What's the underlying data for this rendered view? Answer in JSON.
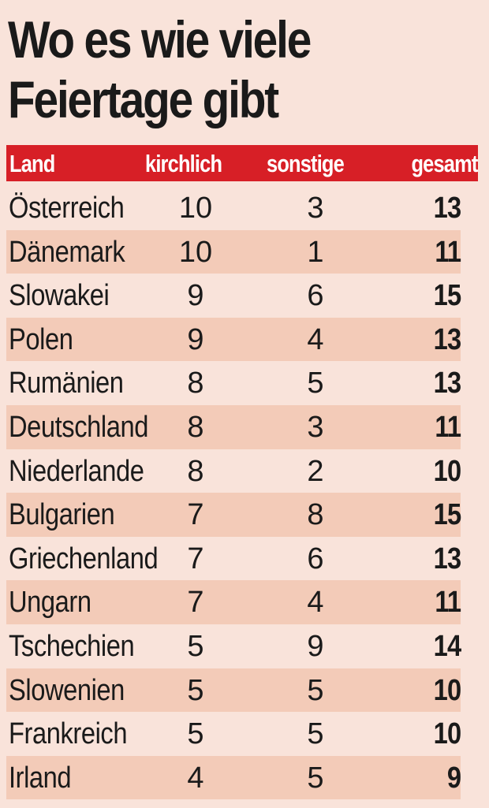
{
  "chart_data": {
    "type": "table",
    "title": "Wo es wie viele Feiertage gibt",
    "title_lines": [
      "Wo es wie viele",
      "Feiertage gibt"
    ],
    "columns": [
      "Land",
      "kirchlich",
      "sonstige",
      "gesamt"
    ],
    "rows": [
      {
        "land": "Österreich",
        "kirchlich": 10,
        "sonstige": 3,
        "gesamt": 13
      },
      {
        "land": "Dänemark",
        "kirchlich": 10,
        "sonstige": 1,
        "gesamt": 11
      },
      {
        "land": "Slowakei",
        "kirchlich": 9,
        "sonstige": 6,
        "gesamt": 15
      },
      {
        "land": "Polen",
        "kirchlich": 9,
        "sonstige": 4,
        "gesamt": 13
      },
      {
        "land": "Rumänien",
        "kirchlich": 8,
        "sonstige": 5,
        "gesamt": 13
      },
      {
        "land": "Deutschland",
        "kirchlich": 8,
        "sonstige": 3,
        "gesamt": 11
      },
      {
        "land": "Niederlande",
        "kirchlich": 8,
        "sonstige": 2,
        "gesamt": 10
      },
      {
        "land": "Bulgarien",
        "kirchlich": 7,
        "sonstige": 8,
        "gesamt": 15
      },
      {
        "land": "Griechenland",
        "kirchlich": 7,
        "sonstige": 6,
        "gesamt": 13
      },
      {
        "land": "Ungarn",
        "kirchlich": 7,
        "sonstige": 4,
        "gesamt": 11
      },
      {
        "land": "Tschechien",
        "kirchlich": 5,
        "sonstige": 9,
        "gesamt": 14
      },
      {
        "land": "Slowenien",
        "kirchlich": 5,
        "sonstige": 5,
        "gesamt": 10
      },
      {
        "land": "Frankreich",
        "kirchlich": 5,
        "sonstige": 5,
        "gesamt": 10
      },
      {
        "land": "Irland",
        "kirchlich": 4,
        "sonstige": 5,
        "gesamt": 9
      }
    ],
    "colors": {
      "background": "#f9e3da",
      "header": "#d71f26",
      "alt_row": "#f3cbb8",
      "text": "#1a1a1a"
    }
  }
}
